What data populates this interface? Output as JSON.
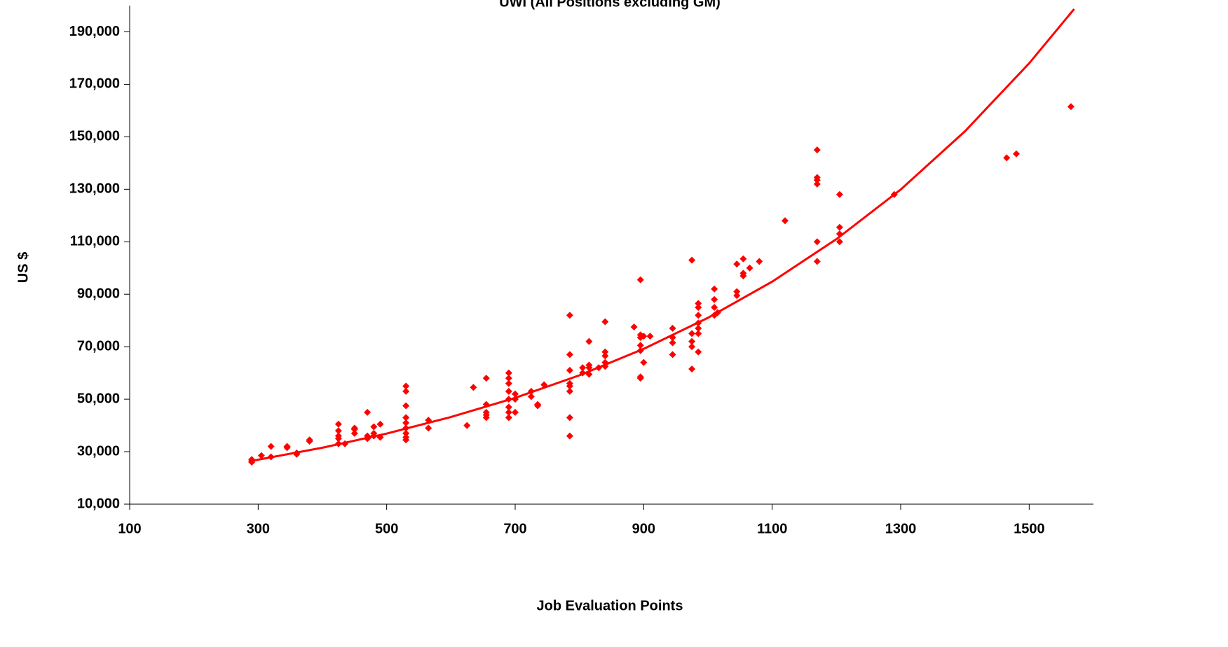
{
  "chart_data": {
    "type": "scatter",
    "title": "UWI (All Positions excluding GM)",
    "xlabel": "Job Evaluation Points",
    "ylabel": "US $",
    "xlim": [
      100,
      1600
    ],
    "ylim": [
      10000,
      200000
    ],
    "xticks": [
      100,
      300,
      500,
      700,
      900,
      1100,
      1300,
      1500
    ],
    "yticks": [
      {
        "value": 10000,
        "label": "10,000"
      },
      {
        "value": 30000,
        "label": "30,000"
      },
      {
        "value": 50000,
        "label": "50,000"
      },
      {
        "value": 70000,
        "label": "70,000"
      },
      {
        "value": 90000,
        "label": "90,000"
      },
      {
        "value": 110000,
        "label": "110,000"
      },
      {
        "value": 130000,
        "label": "130,000"
      },
      {
        "value": 150000,
        "label": "150,000"
      },
      {
        "value": 170000,
        "label": "170,000"
      },
      {
        "value": 190000,
        "label": "190,000"
      }
    ],
    "grid": false,
    "series": [
      {
        "style": "marker",
        "color": "#ff0000",
        "x": [
          290,
          290,
          290,
          305,
          320,
          320,
          345,
          345,
          360,
          360,
          380,
          380,
          425,
          425,
          425,
          425,
          425,
          435,
          450,
          450,
          450,
          470,
          470,
          470,
          480,
          480,
          480,
          490,
          490,
          530,
          530,
          530,
          530,
          530,
          530,
          530,
          530,
          530,
          565,
          565,
          625,
          635,
          655,
          655,
          655,
          655,
          655,
          690,
          690,
          690,
          690,
          690,
          690,
          690,
          690,
          700,
          700,
          700,
          725,
          725,
          735,
          735,
          745,
          785,
          785,
          785,
          785,
          785,
          785,
          785,
          785,
          805,
          805,
          815,
          815,
          815,
          815,
          830,
          840,
          840,
          840,
          840,
          840,
          885,
          895,
          895,
          895,
          895,
          895,
          895,
          895,
          900,
          900,
          910,
          945,
          945,
          945,
          945,
          975,
          975,
          975,
          975,
          975,
          985,
          985,
          985,
          985,
          985,
          985,
          985,
          1010,
          1010,
          1010,
          1010,
          1015,
          1045,
          1045,
          1045,
          1055,
          1055,
          1055,
          1065,
          1080,
          1120,
          1170,
          1170,
          1170,
          1170,
          1170,
          1170,
          1205,
          1205,
          1205,
          1205,
          1290,
          1465,
          1480,
          1565
        ],
        "values": [
          26000,
          27000,
          26500,
          28500,
          28000,
          32000,
          31500,
          32000,
          29000,
          29500,
          34000,
          34500,
          33000,
          35000,
          36000,
          38000,
          40500,
          33000,
          37000,
          38500,
          39000,
          35000,
          36000,
          45000,
          36000,
          37000,
          39500,
          35500,
          40500,
          34500,
          35500,
          37000,
          39000,
          41000,
          43000,
          47500,
          53000,
          55000,
          39000,
          42000,
          40000,
          54500,
          43000,
          44000,
          45000,
          48000,
          58000,
          43000,
          45000,
          47000,
          50000,
          53000,
          56000,
          58000,
          60000,
          45000,
          50000,
          52000,
          51000,
          53000,
          47500,
          48000,
          55500,
          36000,
          43000,
          53000,
          55000,
          56000,
          61000,
          67000,
          82000,
          60000,
          62000,
          59500,
          62000,
          63000,
          72000,
          62000,
          62500,
          64000,
          66500,
          68000,
          79500,
          77500,
          58000,
          58500,
          68500,
          70500,
          73500,
          74500,
          95500,
          64000,
          74000,
          74000,
          67000,
          71500,
          73500,
          77000,
          61500,
          70000,
          72000,
          75000,
          103000,
          68000,
          75000,
          77000,
          79000,
          82000,
          85000,
          86500,
          82000,
          85000,
          88000,
          92000,
          83000,
          89500,
          91000,
          101500,
          97000,
          98000,
          103500,
          100000,
          102500,
          118000,
          102500,
          110000,
          132000,
          133500,
          134500,
          145000,
          110000,
          113000,
          115500,
          128000,
          128000,
          142000,
          143500,
          161500
        ]
      },
      {
        "style": "line",
        "color": "#ff0000",
        "x": [
          290,
          400,
          500,
          600,
          700,
          800,
          900,
          1000,
          1100,
          1200,
          1300,
          1400,
          1500,
          1570
        ],
        "values": [
          26500,
          31500,
          36900,
          43200,
          50500,
          59100,
          69200,
          81000,
          94800,
          111000,
          129900,
          152100,
          178000,
          198700
        ]
      }
    ]
  }
}
